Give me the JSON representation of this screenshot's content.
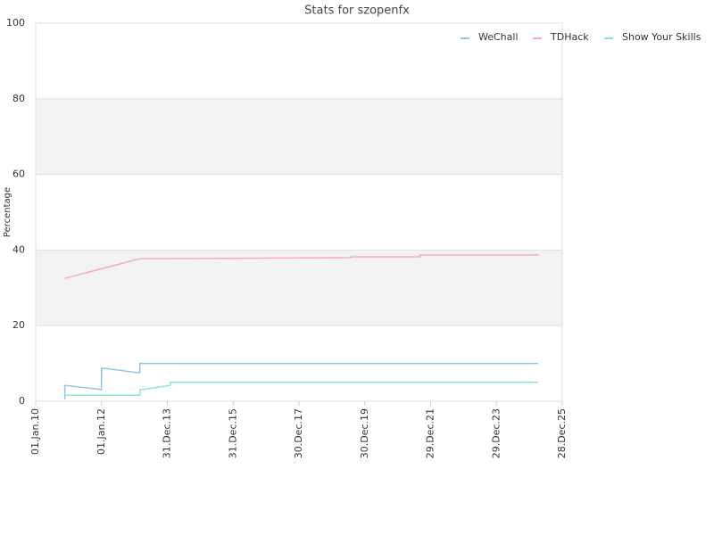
{
  "chart_data": {
    "type": "line",
    "title": "Stats for szopenfx",
    "ylabel": "Percentage",
    "xlim": [
      "2010-01-01",
      "2025-12-28"
    ],
    "xticks": [
      {
        "value": "2010-01-01",
        "label": "01.Jan.10"
      },
      {
        "value": "2012-01-01",
        "label": "01.Jan.12"
      },
      {
        "value": "2013-12-31",
        "label": "31.Dec.13"
      },
      {
        "value": "2015-12-31",
        "label": "31.Dec.15"
      },
      {
        "value": "2017-12-30",
        "label": "30.Dec.17"
      },
      {
        "value": "2019-12-30",
        "label": "30.Dec.19"
      },
      {
        "value": "2021-12-29",
        "label": "29.Dec.21"
      },
      {
        "value": "2023-12-29",
        "label": "29.Dec.23"
      },
      {
        "value": "2025-12-28",
        "label": "28.Dec.25"
      }
    ],
    "ylim": [
      0,
      100
    ],
    "yticks": [
      0,
      20,
      40,
      60,
      80,
      100
    ],
    "grid": true,
    "bands": true,
    "legend": "top-right",
    "series": [
      {
        "name": "WeChall",
        "color": "#8ec3e8",
        "x": [
          "2010-11-20",
          "2010-11-20",
          "2011-12-31",
          "2012-01-01",
          "2013-02-28",
          "2013-03-01",
          "2025-04-08"
        ],
        "values": [
          0.5,
          4.2,
          3.1,
          8.8,
          7.5,
          10,
          10
        ]
      },
      {
        "name": "TDHack",
        "color": "#f2a7c9",
        "x": [
          "2010-11-20",
          "2013-03-01",
          "2015-10-01",
          "2019-08-01",
          "2019-08-02",
          "2021-09-01",
          "2021-09-02",
          "2025-04-08"
        ],
        "values": [
          32.5,
          37.7,
          37.8,
          38.0,
          38.2,
          38.2,
          38.7,
          38.7
        ]
      },
      {
        "name": "Show Your Skills",
        "color": "#8ee8c4",
        "x": [
          "2010-11-20",
          "2013-03-01",
          "2013-03-02",
          "2014-02-01",
          "2014-02-02",
          "2025-04-08"
        ],
        "values": [
          1.6,
          1.6,
          3.0,
          4.2,
          5.0,
          5.0
        ]
      }
    ]
  }
}
